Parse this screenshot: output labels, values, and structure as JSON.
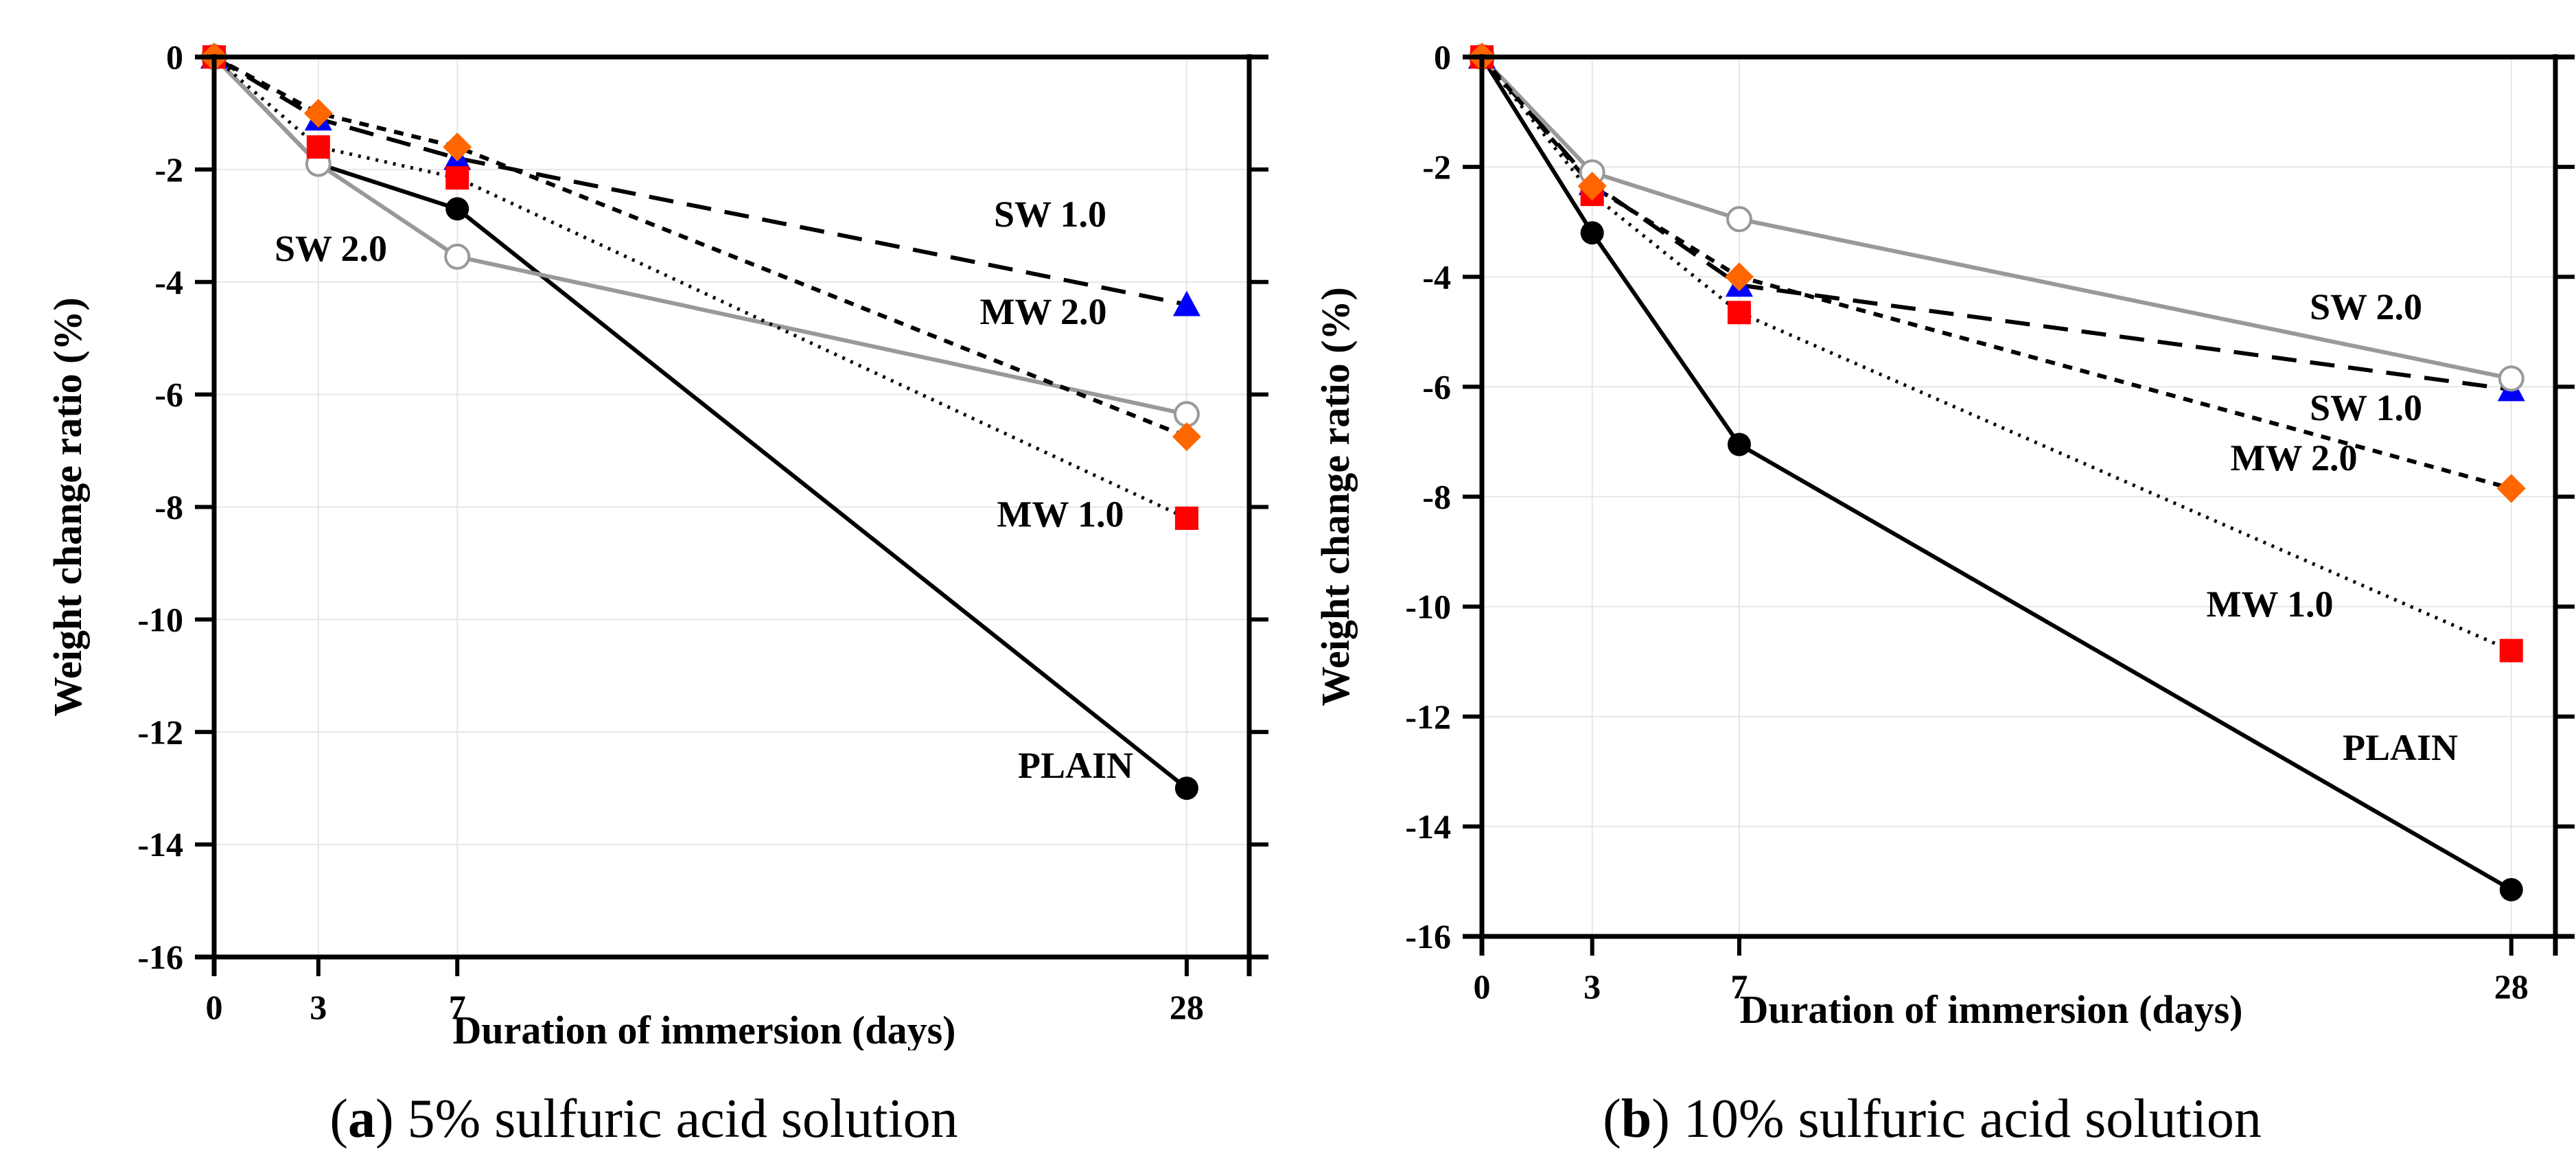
{
  "chart_data": [
    {
      "type": "line",
      "panel_label": "a",
      "caption": "5% sulfuric acid solution",
      "xlabel": "Duration of immersion (days)",
      "ylabel": "Weight change ratio (%)",
      "x": [
        0,
        3,
        7,
        28
      ],
      "x_ticks": [
        0,
        3,
        7,
        28
      ],
      "y_ticks": [
        0,
        -2,
        -4,
        -6,
        -8,
        -10,
        -12,
        -14,
        -16
      ],
      "ylim": [
        -16,
        0
      ],
      "series": [
        {
          "name": "PLAIN",
          "label": "PLAIN",
          "values": [
            0,
            -1.9,
            -2.7,
            -13.0
          ],
          "marker": "circle",
          "color": "#000000",
          "line": "solid"
        },
        {
          "name": "SW 1.0",
          "label": "SW 1.0",
          "values": [
            0,
            -1.1,
            -1.8,
            -4.4
          ],
          "marker": "triangle",
          "color": "#0000ff",
          "line": "dashed"
        },
        {
          "name": "SW 2.0",
          "label": "SW 2.0",
          "values": [
            0,
            -1.9,
            -3.55,
            -6.35
          ],
          "marker": "open-circle",
          "color": "#999999",
          "line": "gray-solid"
        },
        {
          "name": "MW 1.0",
          "label": "MW 1.0",
          "values": [
            0,
            -1.6,
            -2.15,
            -8.2
          ],
          "marker": "square",
          "color": "#ff0000",
          "line": "dotted"
        },
        {
          "name": "MW 2.0",
          "label": "MW 2.0",
          "values": [
            0,
            -1.0,
            -1.6,
            -6.75
          ],
          "marker": "diamond",
          "color": "#ff6600",
          "line": "short-dashed"
        }
      ]
    },
    {
      "type": "line",
      "panel_label": "b",
      "caption": "10% sulfuric acid solution",
      "xlabel": "Duration of immersion (days)",
      "ylabel": "Weight change ratio (%)",
      "x": [
        0,
        3,
        7,
        28
      ],
      "x_ticks": [
        0,
        3,
        7,
        28
      ],
      "y_ticks": [
        0,
        -2,
        -4,
        -6,
        -8,
        -10,
        -12,
        -14,
        -16
      ],
      "ylim": [
        -16,
        0
      ],
      "series": [
        {
          "name": "PLAIN",
          "label": "PLAIN",
          "values": [
            0,
            -3.2,
            -7.05,
            -15.15
          ],
          "marker": "circle",
          "color": "#000000",
          "line": "solid"
        },
        {
          "name": "SW 1.0",
          "label": "SW 1.0",
          "values": [
            0,
            -2.3,
            -4.15,
            -6.05
          ],
          "marker": "triangle",
          "color": "#0000ff",
          "line": "dashed"
        },
        {
          "name": "SW 2.0",
          "label": "SW 2.0",
          "values": [
            0,
            -2.1,
            -2.95,
            -5.85
          ],
          "marker": "open-circle",
          "color": "#999999",
          "line": "gray-solid"
        },
        {
          "name": "MW 1.0",
          "label": "MW 1.0",
          "values": [
            0,
            -2.5,
            -4.65,
            -10.8
          ],
          "marker": "square",
          "color": "#ff0000",
          "line": "dotted"
        },
        {
          "name": "MW 2.0",
          "label": "MW 2.0",
          "values": [
            0,
            -2.35,
            -4.0,
            -7.85
          ],
          "marker": "diamond",
          "color": "#ff6600",
          "line": "short-dashed"
        }
      ]
    }
  ]
}
